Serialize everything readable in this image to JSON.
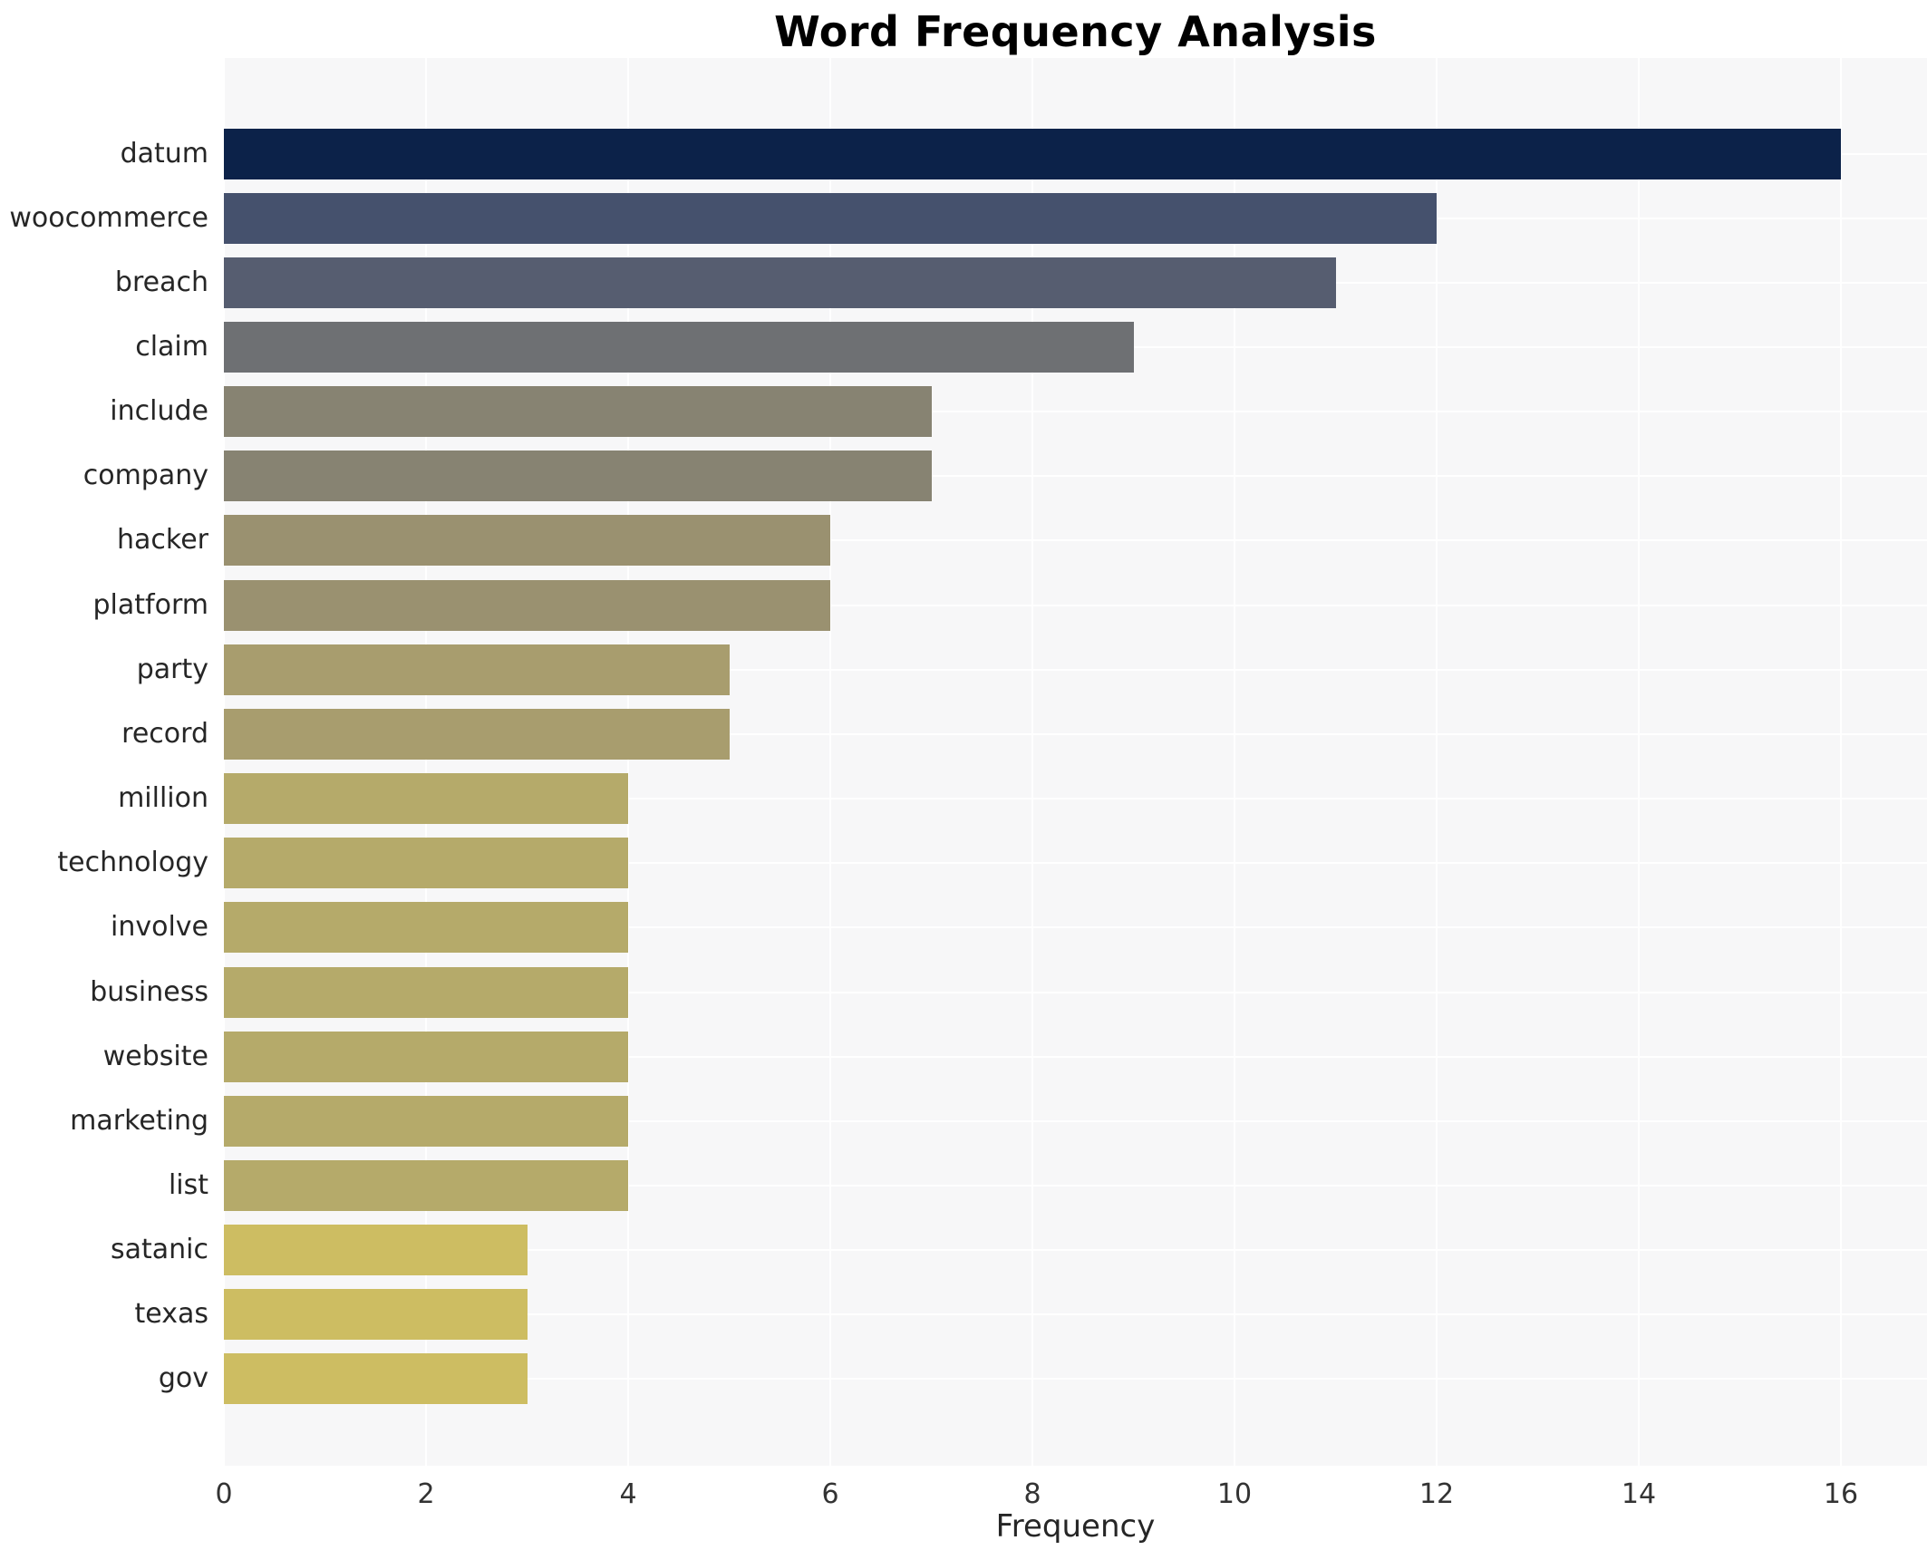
{
  "chart_data": {
    "type": "bar",
    "orientation": "horizontal",
    "title": "Word Frequency Analysis",
    "xlabel": "Frequency",
    "ylabel": "",
    "categories": [
      "datum",
      "woocommerce",
      "breach",
      "claim",
      "include",
      "company",
      "hacker",
      "platform",
      "party",
      "record",
      "million",
      "technology",
      "involve",
      "business",
      "website",
      "marketing",
      "list",
      "satanic",
      "texas",
      "gov"
    ],
    "values": [
      16,
      12,
      11,
      9,
      7,
      7,
      6,
      6,
      5,
      5,
      4,
      4,
      4,
      4,
      4,
      4,
      4,
      3,
      3,
      3
    ],
    "bar_colors": [
      "#0c2249",
      "#45516d",
      "#565d70",
      "#6e7073",
      "#878372",
      "#878372",
      "#9a9170",
      "#9a9170",
      "#a89d6e",
      "#a89d6e",
      "#b5aa6a",
      "#b5aa6a",
      "#b5aa6a",
      "#b5aa6a",
      "#b5aa6a",
      "#b5aa6a",
      "#b5aa6a",
      "#cdbd62",
      "#cdbd62",
      "#cdbd62"
    ],
    "xticks": [
      0,
      2,
      4,
      6,
      8,
      10,
      12,
      14,
      16
    ],
    "xlim": [
      0,
      16.85
    ],
    "grid": true,
    "legend_position": "none",
    "plot_background": "#f7f7f8",
    "grid_color": "#ffffff",
    "title_color": "#000000",
    "tick_label_color": "#333333",
    "category_label_color": "#262626"
  }
}
